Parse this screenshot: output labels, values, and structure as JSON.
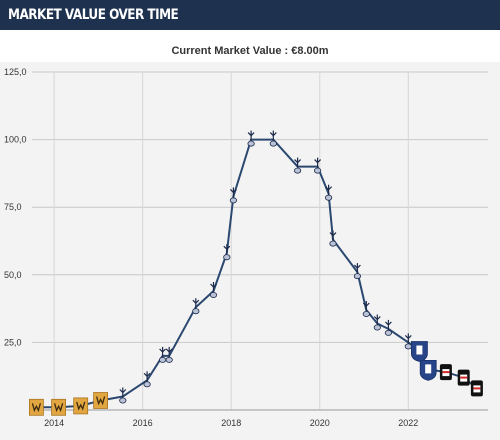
{
  "header": {
    "title": "MARKET VALUE OVER TIME"
  },
  "subtitle": "Current Market Value : €8.00m",
  "colors": {
    "header_bg": "#1e3250",
    "line": "#2b4870",
    "plot_bg": "#f3f3f3",
    "grid": "#c8c8c8",
    "club_wolves": "#e2a640",
    "club_tottenham": "#1c2a4a",
    "club_everton": "#274488",
    "club_besiktas": "#111111"
  },
  "chart_data": {
    "type": "line",
    "title": "Current Market Value : €8.00m",
    "xlabel": "",
    "ylabel": "",
    "ylim": [
      0,
      125
    ],
    "xlim": [
      2013.5,
      2023.8
    ],
    "y_ticks": [
      "25,0",
      "50,0",
      "75,0",
      "100,0",
      "125,0"
    ],
    "y_tick_values": [
      25,
      50,
      75,
      100,
      125
    ],
    "x_ticks": [
      "2014",
      "2016",
      "2018",
      "2020",
      "2022"
    ],
    "x_tick_values": [
      2014,
      2016,
      2018,
      2020,
      2022
    ],
    "grid": true,
    "series": [
      {
        "values": [
          {
            "x": 2013.6,
            "y": 1.0,
            "club": "wolves"
          },
          {
            "x": 2014.1,
            "y": 1.0,
            "club": "wolves"
          },
          {
            "x": 2014.6,
            "y": 1.5,
            "club": "wolves"
          },
          {
            "x": 2015.05,
            "y": 3.5,
            "club": "wolves"
          },
          {
            "x": 2015.55,
            "y": 5.0,
            "club": "tottenham"
          },
          {
            "x": 2016.1,
            "y": 11.0,
            "club": "tottenham"
          },
          {
            "x": 2016.45,
            "y": 20.0,
            "club": "tottenham"
          },
          {
            "x": 2016.6,
            "y": 20.0,
            "club": "tottenham"
          },
          {
            "x": 2017.2,
            "y": 38.0,
            "club": "tottenham"
          },
          {
            "x": 2017.6,
            "y": 44.0,
            "club": "tottenham"
          },
          {
            "x": 2017.9,
            "y": 58.0,
            "club": "tottenham"
          },
          {
            "x": 2018.05,
            "y": 79.0,
            "club": "tottenham"
          },
          {
            "x": 2018.45,
            "y": 100.0,
            "club": "tottenham"
          },
          {
            "x": 2018.95,
            "y": 100.0,
            "club": "tottenham"
          },
          {
            "x": 2019.5,
            "y": 90.0,
            "club": "tottenham"
          },
          {
            "x": 2019.95,
            "y": 90.0,
            "club": "tottenham"
          },
          {
            "x": 2020.2,
            "y": 80.0,
            "club": "tottenham"
          },
          {
            "x": 2020.3,
            "y": 63.0,
            "club": "tottenham"
          },
          {
            "x": 2020.85,
            "y": 51.0,
            "club": "tottenham"
          },
          {
            "x": 2021.05,
            "y": 37.0,
            "club": "tottenham"
          },
          {
            "x": 2021.3,
            "y": 32.0,
            "club": "tottenham"
          },
          {
            "x": 2021.55,
            "y": 30.0,
            "club": "tottenham"
          },
          {
            "x": 2022.0,
            "y": 25.0,
            "club": "tottenham"
          },
          {
            "x": 2022.25,
            "y": 22.0,
            "club": "everton"
          },
          {
            "x": 2022.45,
            "y": 15.0,
            "club": "everton"
          },
          {
            "x": 2022.85,
            "y": 14.0,
            "club": "besiktas"
          },
          {
            "x": 2023.25,
            "y": 12.0,
            "club": "besiktas"
          },
          {
            "x": 2023.55,
            "y": 8.0,
            "club": "besiktas"
          }
        ]
      }
    ]
  }
}
